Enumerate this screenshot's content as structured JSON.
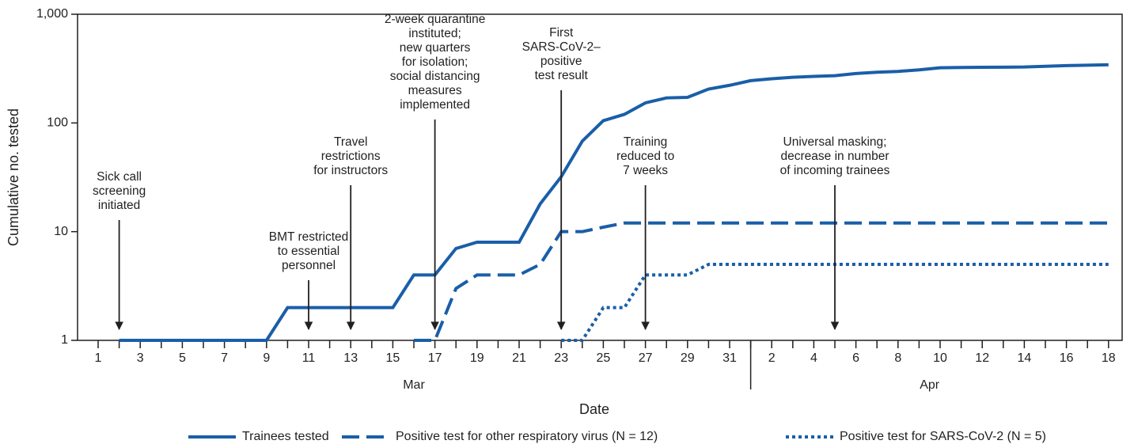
{
  "chart_data": {
    "type": "line",
    "x_label": "Date",
    "y_label": "Cumulative no. tested",
    "log_scale": true,
    "ylim": [
      1,
      1000
    ],
    "yticks": [
      1,
      10,
      100,
      {
        "value": 1000,
        "label": "1,000"
      }
    ],
    "categories": [
      "1",
      null,
      "3",
      null,
      "5",
      null,
      "7",
      null,
      "9",
      null,
      "11",
      null,
      "13",
      null,
      "15",
      null,
      "17",
      null,
      "19",
      null,
      "21",
      null,
      "23",
      null,
      "25",
      null,
      "27",
      null,
      "29",
      null,
      "31",
      null,
      "2",
      null,
      "4",
      null,
      "6",
      null,
      "8",
      null,
      "10",
      null,
      "12",
      null,
      "14",
      null,
      "16",
      null,
      "18"
    ],
    "months": [
      {
        "label": "Mar",
        "first": 0,
        "last": 30
      },
      {
        "label": "Apr",
        "first": 31,
        "last": 48
      }
    ],
    "series": [
      {
        "name": "Trainees tested",
        "color": "#1a5ea8",
        "dash": "solid",
        "values": [
          null,
          1,
          1,
          1,
          1,
          1,
          1,
          1,
          1,
          2,
          2,
          2,
          2,
          2,
          2,
          4,
          4,
          7,
          8,
          8,
          8,
          18,
          32,
          68,
          105,
          120,
          153,
          170,
          172,
          205,
          222,
          245,
          255,
          263,
          268,
          272,
          285,
          293,
          298,
          308,
          322,
          324,
          325,
          326,
          327,
          332,
          337,
          340,
          343
        ]
      },
      {
        "name": "Positive test for other respiratory virus (N = 12)",
        "color": "#1a5ea8",
        "dash": "dashed",
        "values": [
          null,
          null,
          null,
          null,
          null,
          null,
          null,
          null,
          null,
          null,
          null,
          null,
          null,
          null,
          null,
          1,
          1,
          3,
          4,
          4,
          4,
          5,
          10,
          10,
          11,
          12,
          12,
          12,
          12,
          12,
          12,
          12,
          12,
          12,
          12,
          12,
          12,
          12,
          12,
          12,
          12,
          12,
          12,
          12,
          12,
          12,
          12,
          12,
          12
        ]
      },
      {
        "name": "Positive test for SARS-CoV-2 (N = 5)",
        "color": "#1a5ea8",
        "dash": "dotted",
        "values": [
          null,
          null,
          null,
          null,
          null,
          null,
          null,
          null,
          null,
          null,
          null,
          null,
          null,
          null,
          null,
          null,
          null,
          null,
          null,
          null,
          null,
          null,
          1,
          1,
          2,
          2,
          4,
          4,
          4,
          5,
          5,
          5,
          5,
          5,
          5,
          5,
          5,
          5,
          5,
          5,
          5,
          5,
          5,
          5,
          5,
          5,
          5,
          5,
          5
        ]
      }
    ],
    "annotations": [
      {
        "at": 1,
        "text": [
          "Sick call",
          "screening",
          "initiated"
        ]
      },
      {
        "at": 10,
        "text": [
          "BMT restricted",
          "to essential",
          "personnel"
        ]
      },
      {
        "at": 12,
        "text": [
          "Travel",
          "restrictions",
          "for instructors"
        ]
      },
      {
        "at": 16,
        "text": [
          "2-week quarantine",
          "instituted;",
          "new quarters",
          "for isolation;",
          "social distancing",
          "measures",
          "implemented"
        ]
      },
      {
        "at": 22,
        "text": [
          "First",
          "SARS-CoV-2–",
          "positive",
          "test result"
        ]
      },
      {
        "at": 26,
        "text": [
          "Training",
          "reduced to",
          "7 weeks"
        ]
      },
      {
        "at": 35,
        "text": [
          "Universal masking;",
          "decrease in number",
          "of incoming trainees"
        ]
      }
    ]
  }
}
